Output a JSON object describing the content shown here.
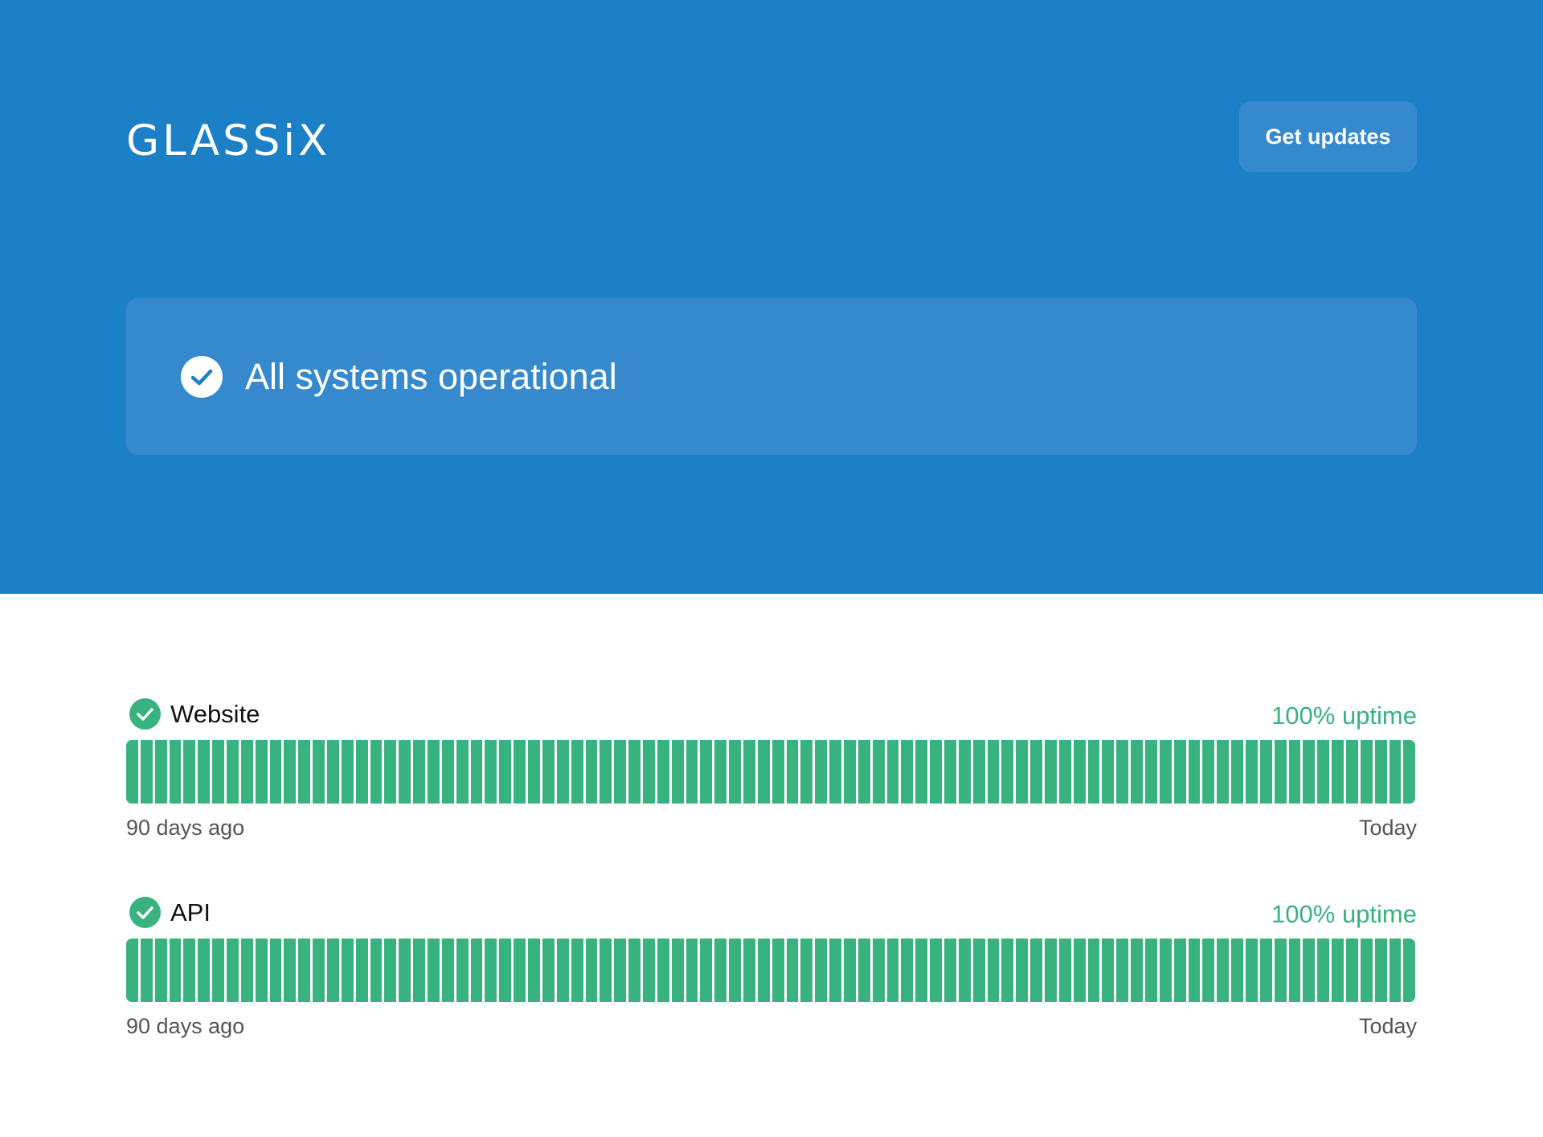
{
  "header": {
    "logo_text": "GLASSiX",
    "get_updates_label": "Get updates"
  },
  "banner": {
    "status_text": "All systems operational",
    "icon": "check-circle-icon"
  },
  "components": [
    {
      "name": "Website",
      "uptime_label": "100% uptime",
      "status_icon": "check-circle-icon",
      "days": 90,
      "axis_start": "90 days ago",
      "axis_end": "Today"
    },
    {
      "name": "API",
      "uptime_label": "100% uptime",
      "status_icon": "check-circle-icon",
      "days": 90,
      "axis_start": "90 days ago",
      "axis_end": "Today"
    }
  ],
  "colors": {
    "header_bg": "#1c80c6",
    "panel_bg": "#3589cc",
    "operational": "#38b27e"
  }
}
